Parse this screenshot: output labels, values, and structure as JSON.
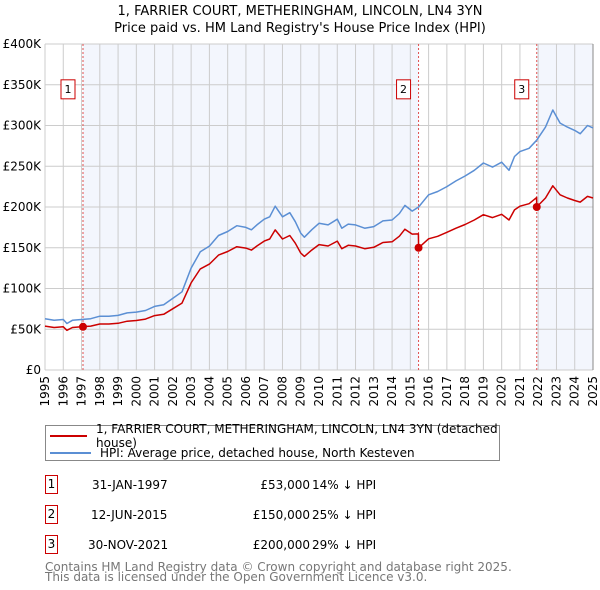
{
  "title": "1, FARRIER COURT, METHERINGHAM, LINCOLN, LN4 3YN",
  "subtitle": "Price paid vs. HM Land Registry's House Price Index (HPI)",
  "chart_data": {
    "type": "line",
    "title": "1, FARRIER COURT, METHERINGHAM, LINCOLN, LN4 3YN",
    "subtitle": "Price paid vs. HM Land Registry's House Price Index (HPI)",
    "xlim": [
      1995,
      2025
    ],
    "ylim": [
      0,
      400000
    ],
    "grid": true,
    "x_ticks": [
      "1995",
      "1996",
      "1997",
      "1998",
      "1999",
      "2000",
      "2001",
      "2002",
      "2003",
      "2004",
      "2005",
      "2006",
      "2007",
      "2008",
      "2009",
      "2010",
      "2011",
      "2012",
      "2013",
      "2014",
      "2015",
      "2016",
      "2017",
      "2018",
      "2019",
      "2020",
      "2021",
      "2022",
      "2023",
      "2024",
      "2025"
    ],
    "y_ticks": [
      {
        "value": 0,
        "label": "£0"
      },
      {
        "value": 50000,
        "label": "£50K"
      },
      {
        "value": 100000,
        "label": "£100K"
      },
      {
        "value": 150000,
        "label": "£150K"
      },
      {
        "value": 200000,
        "label": "£200K"
      },
      {
        "value": 250000,
        "label": "£250K"
      },
      {
        "value": 300000,
        "label": "£300K"
      },
      {
        "value": 350000,
        "label": "£350K"
      },
      {
        "value": 400000,
        "label": "£400K"
      }
    ],
    "legend_position": "below",
    "series": [
      {
        "name": "1, FARRIER COURT, METHERINGHAM, LINCOLN, LN4 3YN (detached house)",
        "color": "#cc0000",
        "x": [
          1995,
          1995.5,
          1996,
          1996.2,
          1996.5,
          1997,
          1997.5,
          1998,
          1998.5,
          1999,
          1999.5,
          2000,
          2000.5,
          2001,
          2001.5,
          2002,
          2002.5,
          2003,
          2003.5,
          2004,
          2004.5,
          2005,
          2005.5,
          2006,
          2006.3,
          2006.6,
          2007,
          2007.3,
          2007.6,
          2008,
          2008.4,
          2008.7,
          2009,
          2009.2,
          2009.6,
          2010,
          2010.5,
          2011,
          2011.25,
          2011.6,
          2012,
          2012.5,
          2013,
          2013.5,
          2014,
          2014.4,
          2014.7,
          2015.1,
          2015.44,
          2015.45,
          2016,
          2016.5,
          2017,
          2017.5,
          2018,
          2018.5,
          2019,
          2019.5,
          2020,
          2020.4,
          2020.7,
          2021,
          2021.5,
          2021.91,
          2021.92,
          2022.4,
          2022.8,
          2023.2,
          2023.6,
          2024,
          2024.3,
          2024.7,
          2025
        ],
        "y": [
          53900,
          52200,
          53000,
          48700,
          52200,
          53000,
          53900,
          56400,
          56400,
          57300,
          59900,
          60700,
          62400,
          66700,
          68400,
          75200,
          82100,
          106900,
          124000,
          130000,
          141000,
          145400,
          151300,
          149600,
          147100,
          152200,
          158200,
          160700,
          171900,
          160700,
          165000,
          155600,
          143600,
          139400,
          147100,
          153900,
          152200,
          158200,
          148800,
          153000,
          152200,
          148800,
          150500,
          156500,
          157300,
          164200,
          172700,
          166700,
          167000,
          150000,
          161000,
          164000,
          169000,
          174000,
          178500,
          184000,
          190500,
          187000,
          191000,
          184000,
          196500,
          201000,
          204000,
          211500,
          200000,
          211000,
          226000,
          215000,
          211000,
          208000,
          206000,
          213000,
          211000
        ]
      },
      {
        "name": "HPI: Average price, detached house, North Kesteven",
        "color": "#5b8fd4",
        "x": [
          1995,
          1995.5,
          1996,
          1996.2,
          1996.5,
          1997,
          1997.5,
          1998,
          1998.5,
          1999,
          1999.5,
          2000,
          2000.5,
          2001,
          2001.5,
          2002,
          2002.5,
          2003,
          2003.5,
          2004,
          2004.5,
          2005,
          2005.5,
          2006,
          2006.3,
          2006.6,
          2007,
          2007.3,
          2007.6,
          2008,
          2008.4,
          2008.7,
          2009,
          2009.2,
          2009.6,
          2010,
          2010.5,
          2011,
          2011.25,
          2011.6,
          2012,
          2012.5,
          2013,
          2013.5,
          2014,
          2014.4,
          2014.7,
          2015.1,
          2015.45,
          2016,
          2016.5,
          2017,
          2017.5,
          2018,
          2018.5,
          2019,
          2019.5,
          2020,
          2020.4,
          2020.7,
          2021,
          2021.5,
          2021.92,
          2022.4,
          2022.8,
          2023.2,
          2023.6,
          2024,
          2024.3,
          2024.7,
          2025
        ],
        "y": [
          63000,
          61000,
          62000,
          57000,
          61000,
          62000,
          63000,
          66000,
          66000,
          67000,
          70000,
          71000,
          73000,
          78000,
          80000,
          88000,
          96000,
          125000,
          145000,
          152000,
          165000,
          170000,
          177000,
          175000,
          172000,
          178000,
          185000,
          188000,
          201000,
          188000,
          193000,
          182000,
          168000,
          163000,
          172000,
          180000,
          178000,
          185000,
          174000,
          179000,
          178000,
          174000,
          176000,
          183000,
          184000,
          192000,
          202000,
          195000,
          200000,
          215000,
          219000,
          225000,
          232000,
          238000,
          245000,
          254000,
          249000,
          255000,
          245000,
          262000,
          268000,
          272000,
          282000,
          298000,
          319000,
          303000,
          298000,
          294000,
          290000,
          300000,
          297000
        ]
      }
    ],
    "sales": [
      {
        "label": "1",
        "x": 1997.08,
        "price": 53000
      },
      {
        "label": "2",
        "x": 2015.45,
        "price": 150000
      },
      {
        "label": "3",
        "x": 2021.92,
        "price": 200000
      }
    ]
  },
  "legend": [
    {
      "label": "1, FARRIER COURT, METHERINGHAM, LINCOLN, LN4 3YN (detached house)",
      "color": "#cc0000"
    },
    {
      "label": "HPI: Average price, detached house, North Kesteven",
      "color": "#5b8fd4"
    }
  ],
  "sales_table": [
    {
      "num": "1",
      "date": "31-JAN-1997",
      "price": "£53,000",
      "hpi": "14% ↓ HPI"
    },
    {
      "num": "2",
      "date": "12-JUN-2015",
      "price": "£150,000",
      "hpi": "25% ↓ HPI"
    },
    {
      "num": "3",
      "date": "30-NOV-2021",
      "price": "£200,000",
      "hpi": "29% ↓ HPI"
    }
  ],
  "footer": [
    "Contains HM Land Registry data © Crown copyright and database right 2025.",
    "This data is licensed under the Open Government Licence v3.0."
  ]
}
